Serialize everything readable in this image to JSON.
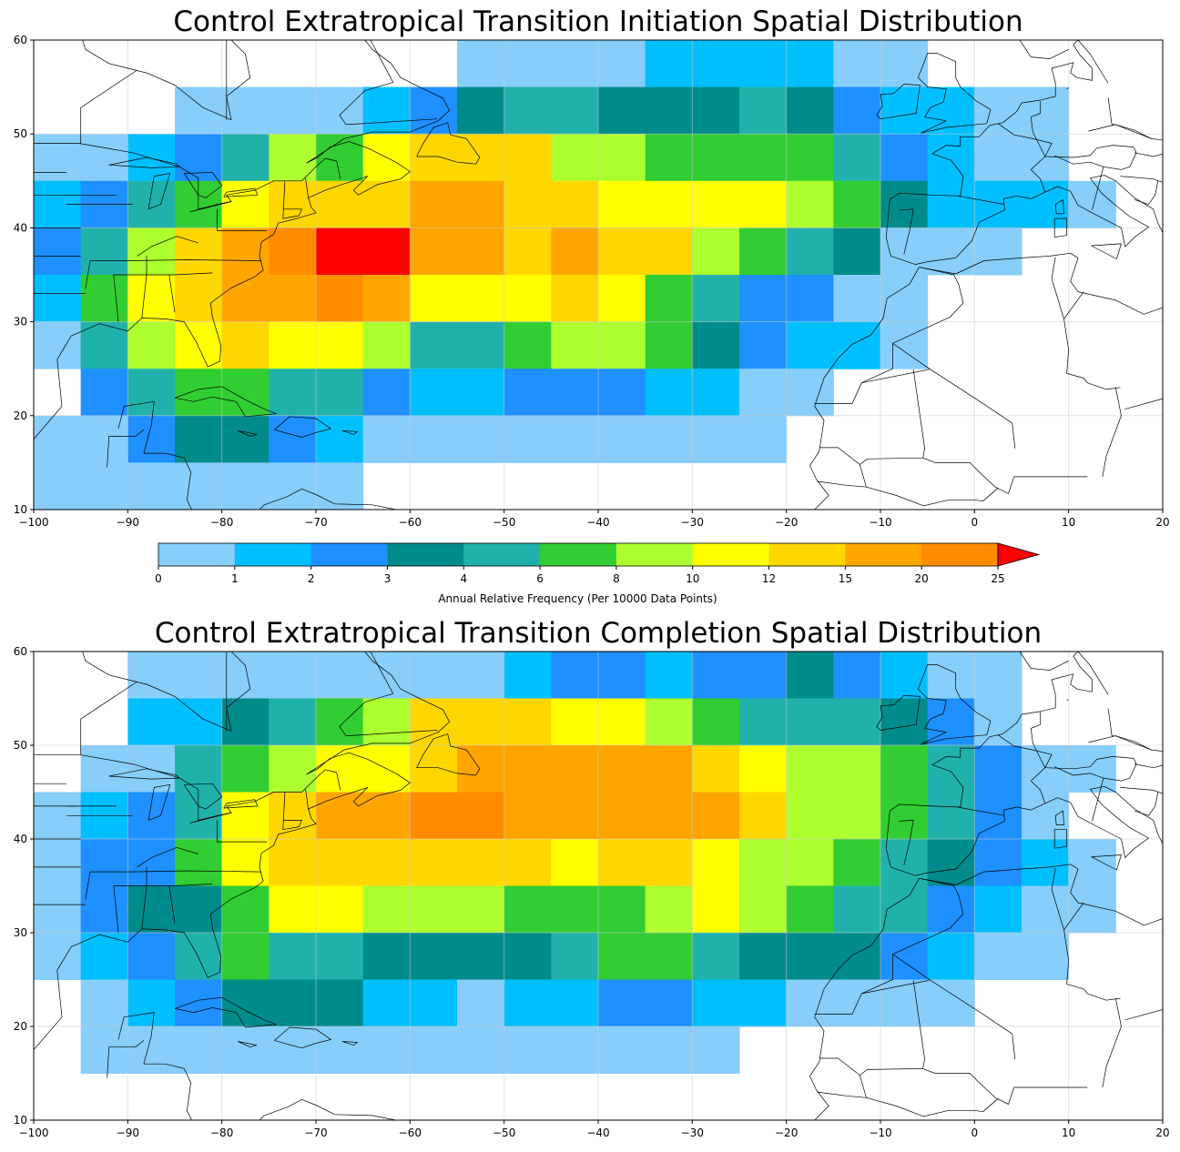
{
  "colorbar": {
    "label": "Annual Relative Frequency (Per 10000 Data Points)",
    "ticks": [
      "0",
      "1",
      "2",
      "3",
      "4",
      "6",
      "8",
      "10",
      "12",
      "15",
      "20",
      "25"
    ],
    "colors": [
      "#87cefa",
      "#00bfff",
      "#1e90ff",
      "#008b8b",
      "#20b2aa",
      "#32cd32",
      "#adff2f",
      "#ffff00",
      "#ffd700",
      "#ffa500",
      "#ff8c00"
    ],
    "over_color": "#ff0000",
    "extend": "max"
  },
  "maps": [
    {
      "title": "Control Extratropical Transition Initiation Spatial Distribution",
      "x_ticks": [
        "−100",
        "−90",
        "−80",
        "−70",
        "−60",
        "−50",
        "−40",
        "−30",
        "−20",
        "−10",
        "0",
        "10",
        "20"
      ],
      "y_ticks": [
        "10",
        "20",
        "30",
        "40",
        "50",
        "60"
      ],
      "lon_range": [
        -100,
        20
      ],
      "lat_range": [
        10,
        60
      ],
      "cell_size_deg": 5,
      "grid": true,
      "bin_index_legend": "0:<1, 1:1-2, 2:2-3, 3:3-4, 4:4-6, 5:6-8, 6:8-10, 7:10-12, 8:12-15, 9:15-20, 10:20-25, 11:>25, null:no data",
      "rows": [
        {
          "lat": 55,
          "bins": [
            null,
            null,
            null,
            null,
            null,
            null,
            null,
            null,
            null,
            0,
            0,
            0,
            0,
            1,
            1,
            1,
            1,
            0,
            0,
            null,
            null,
            null,
            null,
            null
          ]
        },
        {
          "lat": 50,
          "bins": [
            null,
            null,
            null,
            0,
            0,
            0,
            0,
            1,
            2,
            3,
            4,
            4,
            3,
            3,
            3,
            4,
            3,
            2,
            1,
            1,
            0,
            0,
            null,
            null
          ]
        },
        {
          "lat": 45,
          "bins": [
            0,
            0,
            1,
            2,
            4,
            6,
            5,
            7,
            8,
            8,
            8,
            6,
            6,
            5,
            5,
            5,
            5,
            4,
            2,
            1,
            0,
            0,
            null,
            null
          ]
        },
        {
          "lat": 40,
          "bins": [
            1,
            2,
            4,
            5,
            7,
            8,
            8,
            8,
            9,
            9,
            8,
            8,
            7,
            7,
            7,
            7,
            6,
            5,
            3,
            1,
            1,
            1,
            0,
            null
          ]
        },
        {
          "lat": 35,
          "bins": [
            2,
            4,
            6,
            8,
            9,
            10,
            11,
            11,
            9,
            9,
            8,
            9,
            8,
            8,
            6,
            5,
            4,
            3,
            0,
            0,
            0,
            null,
            null,
            null
          ]
        },
        {
          "lat": 30,
          "bins": [
            1,
            5,
            7,
            8,
            9,
            9,
            10,
            9,
            7,
            7,
            7,
            8,
            7,
            5,
            4,
            2,
            2,
            0,
            0,
            null,
            null,
            null,
            null,
            null
          ]
        },
        {
          "lat": 25,
          "bins": [
            0,
            4,
            6,
            7,
            8,
            7,
            7,
            6,
            4,
            4,
            5,
            6,
            6,
            5,
            3,
            2,
            1,
            1,
            0,
            null,
            null,
            null,
            null,
            null
          ]
        },
        {
          "lat": 20,
          "bins": [
            null,
            2,
            4,
            5,
            5,
            4,
            4,
            2,
            1,
            1,
            2,
            2,
            2,
            1,
            1,
            0,
            0,
            null,
            null,
            null,
            null,
            null,
            null,
            null
          ]
        },
        {
          "lat": 15,
          "bins": [
            0,
            0,
            2,
            3,
            3,
            2,
            1,
            0,
            0,
            0,
            0,
            0,
            0,
            0,
            0,
            0,
            null,
            null,
            null,
            null,
            null,
            null,
            null,
            null
          ]
        },
        {
          "lat": 10,
          "bins": [
            0,
            0,
            0,
            0,
            0,
            0,
            0,
            null,
            null,
            null,
            null,
            null,
            null,
            null,
            null,
            null,
            null,
            null,
            null,
            null,
            null,
            null,
            null,
            null
          ]
        }
      ]
    },
    {
      "title": "Control Extratropical Transition Completion Spatial Distribution",
      "x_ticks": [
        "−100",
        "−90",
        "−80",
        "−70",
        "−60",
        "−50",
        "−40",
        "−30",
        "−20",
        "−10",
        "0",
        "10",
        "20"
      ],
      "y_ticks": [
        "10",
        "20",
        "30",
        "40",
        "50",
        "60"
      ],
      "lon_range": [
        -100,
        20
      ],
      "lat_range": [
        10,
        60
      ],
      "cell_size_deg": 5,
      "grid": true,
      "bin_index_legend": "0:<1, 1:1-2, 2:2-3, 3:3-4, 4:4-6, 5:6-8, 6:8-10, 7:10-12, 8:12-15, 9:15-20, 10:20-25, 11:>25, null:no data",
      "rows": [
        {
          "lat": 55,
          "bins": [
            null,
            null,
            0,
            0,
            0,
            0,
            0,
            0,
            0,
            0,
            1,
            2,
            2,
            1,
            2,
            2,
            3,
            2,
            1,
            0,
            0,
            null,
            null,
            null
          ]
        },
        {
          "lat": 50,
          "bins": [
            null,
            null,
            1,
            1,
            3,
            4,
            5,
            6,
            8,
            8,
            8,
            7,
            7,
            6,
            5,
            4,
            4,
            4,
            3,
            2,
            0,
            null,
            null,
            null
          ]
        },
        {
          "lat": 45,
          "bins": [
            null,
            0,
            0,
            4,
            5,
            6,
            7,
            7,
            8,
            9,
            9,
            9,
            9,
            9,
            8,
            7,
            6,
            6,
            5,
            4,
            2,
            0,
            0,
            null
          ]
        },
        {
          "lat": 40,
          "bins": [
            0,
            1,
            2,
            4,
            7,
            8,
            9,
            9,
            10,
            10,
            9,
            9,
            9,
            9,
            9,
            8,
            6,
            6,
            5,
            4,
            2,
            0,
            null,
            null
          ]
        },
        {
          "lat": 35,
          "bins": [
            0,
            2,
            2,
            5,
            7,
            8,
            8,
            8,
            8,
            8,
            8,
            7,
            8,
            8,
            7,
            6,
            6,
            5,
            4,
            3,
            2,
            1,
            0,
            null
          ]
        },
        {
          "lat": 30,
          "bins": [
            0,
            2,
            3,
            3,
            5,
            7,
            7,
            6,
            6,
            6,
            5,
            5,
            5,
            6,
            7,
            6,
            5,
            4,
            4,
            2,
            1,
            0,
            0,
            null
          ]
        },
        {
          "lat": 25,
          "bins": [
            0,
            1,
            2,
            4,
            5,
            4,
            4,
            3,
            3,
            3,
            3,
            4,
            5,
            5,
            4,
            3,
            3,
            3,
            2,
            1,
            0,
            0,
            null,
            null
          ]
        },
        {
          "lat": 20,
          "bins": [
            null,
            0,
            1,
            2,
            3,
            3,
            3,
            1,
            1,
            0,
            1,
            1,
            2,
            2,
            1,
            1,
            0,
            0,
            0,
            0,
            null,
            null,
            null,
            null
          ]
        },
        {
          "lat": 15,
          "bins": [
            null,
            0,
            0,
            0,
            0,
            0,
            0,
            0,
            0,
            0,
            0,
            0,
            0,
            0,
            0,
            null,
            null,
            null,
            null,
            null,
            null,
            null,
            null,
            null
          ]
        }
      ]
    }
  ]
}
